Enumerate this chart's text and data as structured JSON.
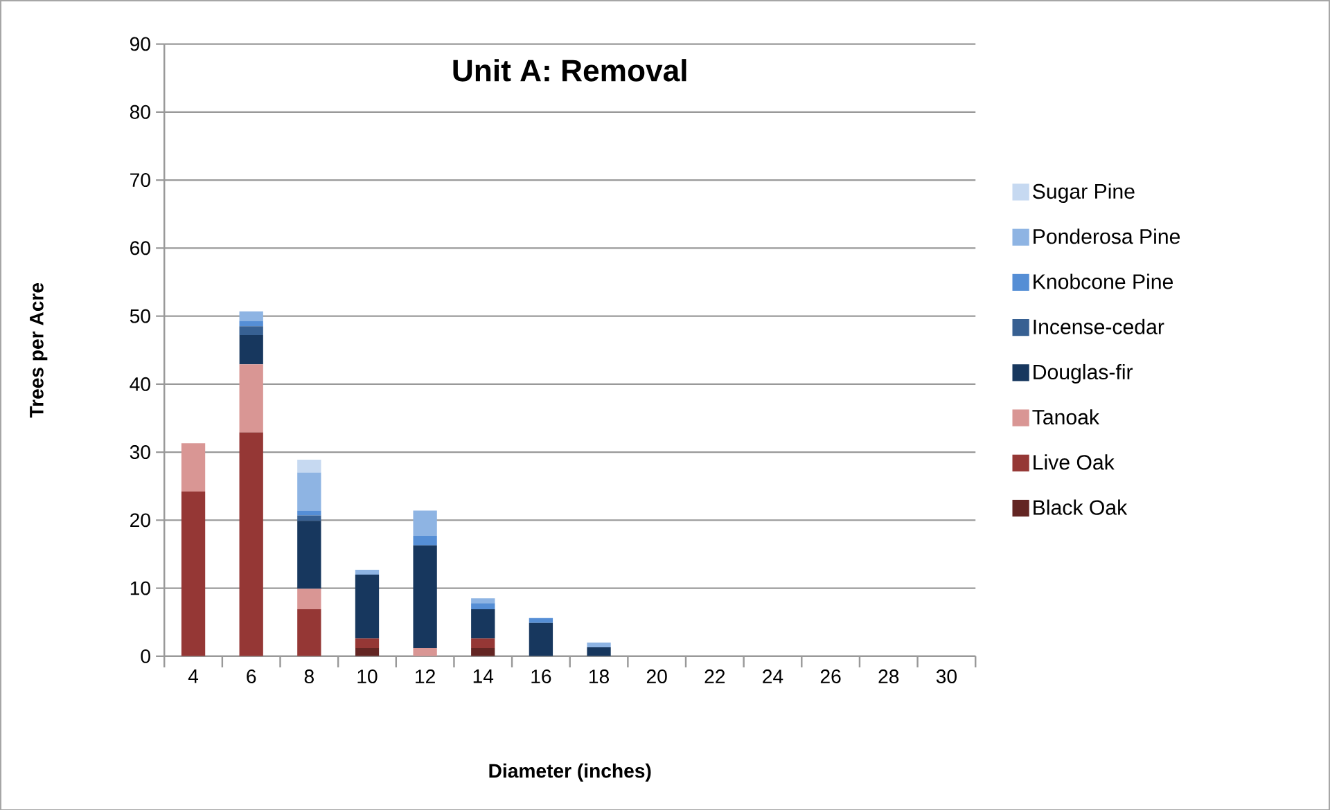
{
  "chart_data": {
    "type": "bar",
    "stacked": true,
    "title": "Unit A: Removal",
    "xlabel": "Diameter (inches)",
    "ylabel": "Trees per Acre",
    "categories": [
      "4",
      "6",
      "8",
      "10",
      "12",
      "14",
      "16",
      "18",
      "20",
      "22",
      "24",
      "26",
      "28",
      "30"
    ],
    "series": [
      {
        "name": "Black Oak",
        "color": "#632523",
        "values": [
          null,
          null,
          null,
          1.2,
          null,
          1.2,
          null,
          null,
          null,
          null,
          null,
          null,
          null,
          null
        ]
      },
      {
        "name": "Live Oak",
        "color": "#953735",
        "values": [
          24.2,
          32.9,
          6.9,
          1.4,
          null,
          1.4,
          null,
          null,
          null,
          null,
          null,
          null,
          null,
          null
        ]
      },
      {
        "name": "Tanoak",
        "color": "#d99694",
        "values": [
          7.1,
          10.0,
          3.0,
          null,
          1.2,
          null,
          null,
          null,
          null,
          null,
          null,
          null,
          null,
          null
        ]
      },
      {
        "name": "Douglas-fir",
        "color": "#17375e",
        "values": [
          null,
          4.3,
          10.0,
          9.4,
          15.1,
          4.3,
          4.9,
          1.3,
          null,
          null,
          null,
          null,
          null,
          null
        ]
      },
      {
        "name": "Incense-cedar",
        "color": "#376092",
        "values": [
          null,
          1.3,
          0.8,
          null,
          null,
          null,
          null,
          null,
          null,
          null,
          null,
          null,
          null,
          null
        ]
      },
      {
        "name": "Knobcone Pine",
        "color": "#558ed5",
        "values": [
          null,
          0.8,
          0.7,
          null,
          1.4,
          0.9,
          0.7,
          null,
          null,
          null,
          null,
          null,
          null,
          null
        ]
      },
      {
        "name": "Ponderosa Pine",
        "color": "#8eb4e3",
        "values": [
          null,
          1.4,
          5.6,
          0.7,
          3.7,
          0.7,
          null,
          0.7,
          null,
          null,
          null,
          null,
          null,
          null
        ]
      },
      {
        "name": "Sugar Pine",
        "color": "#c6d9f1",
        "values": [
          null,
          null,
          1.9,
          null,
          null,
          null,
          null,
          null,
          null,
          null,
          null,
          null,
          null,
          null
        ]
      }
    ],
    "ylim": [
      0,
      90
    ],
    "yticks": [
      0,
      10,
      20,
      30,
      40,
      50,
      60,
      70,
      80,
      90
    ],
    "grid": "y",
    "legend": "right"
  }
}
